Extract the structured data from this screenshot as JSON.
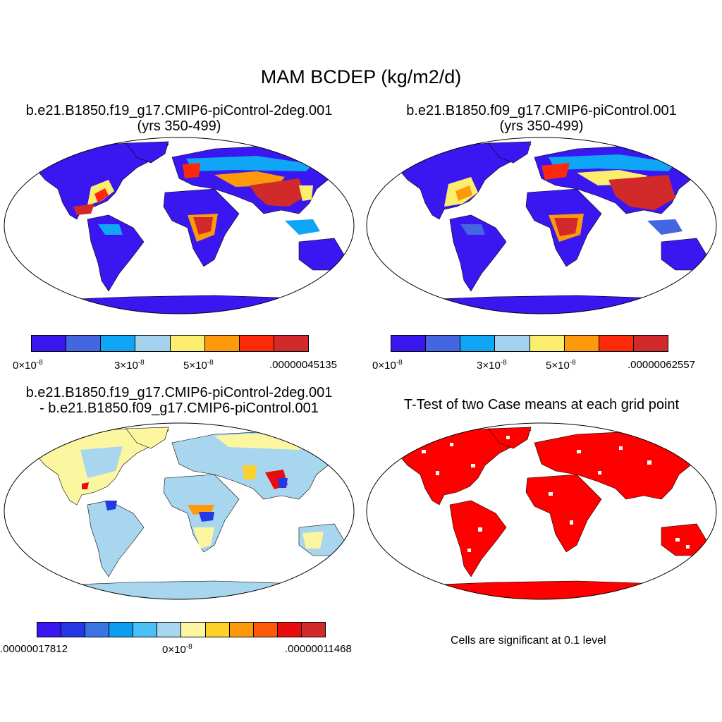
{
  "title": "MAM BCDEP (kg/m2/d)",
  "panels": [
    {
      "title_line1": "b.e21.B1850.f19_g17.CMIP6-piControl-2deg.001",
      "title_line2": "(yrs 350-499)"
    },
    {
      "title_line1": "b.e21.B1850.f09_g17.CMIP6-piControl.001",
      "title_line2": "(yrs 350-499)"
    },
    {
      "title_line1": "b.e21.B1850.f19_g17.CMIP6-piControl-2deg.001",
      "title_line2": "- b.e21.B1850.f09_g17.CMIP6-piControl.001"
    },
    {
      "title_line1": "T-Test of two Case means at each grid point",
      "title_line2": ""
    }
  ],
  "colorbars": [
    {
      "colors": [
        "#3a16f0",
        "#4466e0",
        "#0fa6f5",
        "#a2d2ec",
        "#fbee6e",
        "#fc9a0a",
        "#fc2a0a",
        "#d22a2a"
      ],
      "labels": [
        {
          "base": "0",
          "exp": "-8"
        },
        {
          "base": "3",
          "exp": "-8"
        },
        {
          "base": "5",
          "exp": "-8"
        },
        {
          "text": ".00000045135"
        }
      ]
    },
    {
      "colors": [
        "#3a16f0",
        "#4466e0",
        "#0fa6f5",
        "#a2d2ec",
        "#fbee6e",
        "#fc9a0a",
        "#fc2a0a",
        "#d22a2a"
      ],
      "labels": [
        {
          "base": "0",
          "exp": "-8"
        },
        {
          "base": "3",
          "exp": "-8"
        },
        {
          "base": "5",
          "exp": "-8"
        },
        {
          "text": ".00000062557"
        }
      ]
    },
    {
      "colors": [
        "#3a16f0",
        "#2438e6",
        "#3b74e4",
        "#0c9cf0",
        "#4cc0f6",
        "#a8d6ee",
        "#fdf6a0",
        "#fcd22a",
        "#fc9a0a",
        "#fc5a0a",
        "#e80c0c",
        "#d22a2a"
      ],
      "labels": [
        {
          "text": ".00000017812"
        },
        {
          "base": "0",
          "exp": "-8"
        },
        {
          "text": ".00000011468"
        }
      ]
    }
  ],
  "ttest_note": "Cells are significant at 0.1 level",
  "colors": {
    "land_low": "#3a16f0",
    "land_mid": "#a2d2ec",
    "land_high": "#d22a2a",
    "significant": "#ff0000",
    "coast": "#000000"
  }
}
